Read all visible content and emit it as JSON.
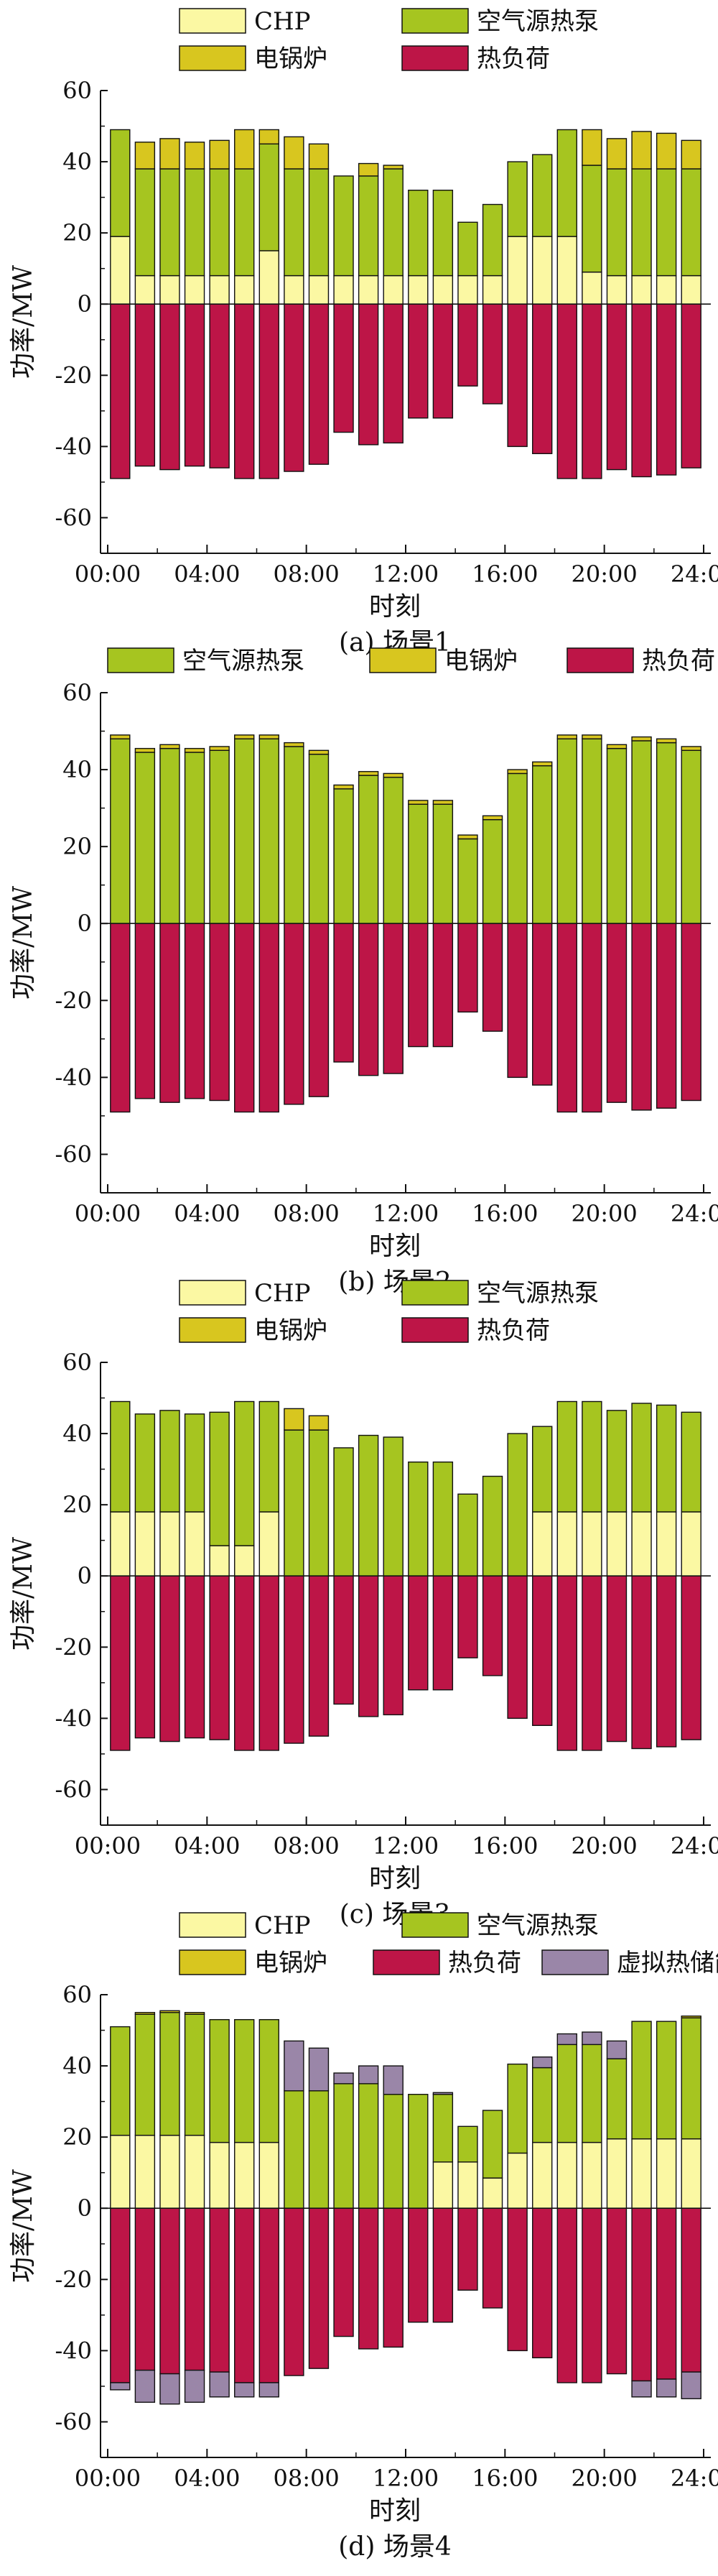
{
  "legend_labels": {
    "chp": "CHP",
    "heatpump": "空气源热泵",
    "boiler": "电锅炉",
    "load": "热负荷",
    "storage": "虚拟热储能"
  },
  "colors": {
    "chp": "#fbf8a3",
    "heatpump": "#a6c520",
    "boiler": "#d8c61f",
    "load": "#bd1547",
    "storage": "#9a86a8",
    "axis": "#111111"
  },
  "chart_data": [
    {
      "type": "bar",
      "stacked": true,
      "caption": "(a) 场景1",
      "xlabel": "时刻",
      "ylabel": "功率/MW",
      "ylim": [
        -70,
        60
      ],
      "yticks": [
        -60,
        -40,
        -20,
        0,
        20,
        40,
        60
      ],
      "xticks": [
        "00:00",
        "04:00",
        "08:00",
        "12:00",
        "16:00",
        "20:00",
        "24:00"
      ],
      "x": [
        1,
        2,
        3,
        4,
        5,
        6,
        7,
        8,
        9,
        10,
        11,
        12,
        13,
        14,
        15,
        16,
        17,
        18,
        19,
        20,
        21,
        22,
        23,
        24
      ],
      "legend_rows": [
        [
          "chp",
          "heatpump"
        ],
        [
          "boiler",
          "load"
        ]
      ],
      "series": [
        {
          "key": "chp",
          "name": "CHP",
          "values": [
            19,
            8,
            8,
            8,
            8,
            8,
            15,
            8,
            8,
            8,
            8,
            8,
            8,
            8,
            8,
            8,
            19,
            19,
            19,
            9,
            8,
            8,
            8,
            8
          ]
        },
        {
          "key": "heatpump",
          "name": "空气源热泵",
          "values": [
            30,
            30,
            30,
            30,
            30,
            30,
            30,
            30,
            30,
            28,
            28,
            30,
            24,
            24,
            15,
            20,
            21,
            23,
            30,
            30,
            30,
            30,
            30,
            30
          ]
        },
        {
          "key": "boiler",
          "name": "电锅炉",
          "values": [
            0,
            7.5,
            8.5,
            7.5,
            8,
            11,
            4,
            9,
            7,
            0,
            3.5,
            1,
            0,
            0,
            0,
            0,
            0,
            0,
            0,
            10,
            8.5,
            10.5,
            10,
            8
          ]
        },
        {
          "key": "load",
          "name": "热负荷",
          "values": [
            -49,
            -45.5,
            -46.5,
            -45.5,
            -46,
            -49,
            -49,
            -47,
            -45,
            -36,
            -39.5,
            -39,
            -32,
            -32,
            -23,
            -28,
            -40,
            -42,
            -49,
            -49,
            -46.5,
            -48.5,
            -48,
            -46
          ]
        }
      ]
    },
    {
      "type": "bar",
      "stacked": true,
      "caption": "(b) 场景2",
      "xlabel": "时刻",
      "ylabel": "功率/MW",
      "ylim": [
        -70,
        60
      ],
      "yticks": [
        -60,
        -40,
        -20,
        0,
        20,
        40,
        60
      ],
      "xticks": [
        "00:00",
        "04:00",
        "08:00",
        "12:00",
        "16:00",
        "20:00",
        "24:00"
      ],
      "x": [
        1,
        2,
        3,
        4,
        5,
        6,
        7,
        8,
        9,
        10,
        11,
        12,
        13,
        14,
        15,
        16,
        17,
        18,
        19,
        20,
        21,
        22,
        23,
        24
      ],
      "legend_rows": [
        [
          "heatpump",
          "boiler",
          "load"
        ]
      ],
      "series": [
        {
          "key": "heatpump",
          "name": "空气源热泵",
          "values": [
            48,
            44.5,
            45.5,
            44.5,
            45,
            48,
            48,
            46,
            44,
            35,
            38.5,
            38,
            31,
            31,
            22,
            27,
            39,
            41,
            48,
            48,
            45.5,
            47.5,
            47,
            45
          ]
        },
        {
          "key": "boiler",
          "name": "电锅炉",
          "values": [
            1,
            1,
            1,
            1,
            1,
            1,
            1,
            1,
            1,
            1,
            1,
            1,
            1,
            1,
            1,
            1,
            1,
            1,
            1,
            1,
            1,
            1,
            1,
            1
          ]
        },
        {
          "key": "load",
          "name": "热负荷",
          "values": [
            -49,
            -45.5,
            -46.5,
            -45.5,
            -46,
            -49,
            -49,
            -47,
            -45,
            -36,
            -39.5,
            -39,
            -32,
            -32,
            -23,
            -28,
            -40,
            -42,
            -49,
            -49,
            -46.5,
            -48.5,
            -48,
            -46
          ]
        }
      ]
    },
    {
      "type": "bar",
      "stacked": true,
      "caption": "(c) 场景3",
      "xlabel": "时刻",
      "ylabel": "功率/MW",
      "ylim": [
        -70,
        60
      ],
      "yticks": [
        -60,
        -40,
        -20,
        0,
        20,
        40,
        60
      ],
      "xticks": [
        "00:00",
        "04:00",
        "08:00",
        "12:00",
        "16:00",
        "20:00",
        "24:00"
      ],
      "x": [
        1,
        2,
        3,
        4,
        5,
        6,
        7,
        8,
        9,
        10,
        11,
        12,
        13,
        14,
        15,
        16,
        17,
        18,
        19,
        20,
        21,
        22,
        23,
        24
      ],
      "legend_rows": [
        [
          "chp",
          "heatpump"
        ],
        [
          "boiler",
          "load"
        ]
      ],
      "series": [
        {
          "key": "chp",
          "name": "CHP",
          "values": [
            18,
            18,
            18,
            18,
            8.5,
            8.5,
            18,
            0,
            0,
            0,
            0,
            0,
            0,
            0,
            0,
            0,
            0,
            18,
            18,
            18,
            18,
            18,
            18,
            18
          ]
        },
        {
          "key": "heatpump",
          "name": "空气源热泵",
          "values": [
            31,
            27.5,
            28.5,
            27.5,
            37.5,
            40.5,
            31,
            41,
            41,
            36,
            39.5,
            39,
            32,
            32,
            23,
            28,
            40,
            24,
            31,
            31,
            28.5,
            30.5,
            30,
            28
          ]
        },
        {
          "key": "boiler",
          "name": "电锅炉",
          "values": [
            0,
            0,
            0,
            0,
            0,
            0,
            0,
            6,
            4,
            0,
            0,
            0,
            0,
            0,
            0,
            0,
            0,
            0,
            0,
            0,
            0,
            0,
            0,
            0
          ]
        },
        {
          "key": "load",
          "name": "热负荷",
          "values": [
            -49,
            -45.5,
            -46.5,
            -45.5,
            -46,
            -49,
            -49,
            -47,
            -45,
            -36,
            -39.5,
            -39,
            -32,
            -32,
            -23,
            -28,
            -40,
            -42,
            -49,
            -49,
            -46.5,
            -48.5,
            -48,
            -46
          ]
        }
      ]
    },
    {
      "type": "bar",
      "stacked": true,
      "caption": "(d) 场景4",
      "xlabel": "时刻",
      "ylabel": "功率/MW",
      "ylim": [
        -70,
        60
      ],
      "yticks": [
        -60,
        -40,
        -20,
        0,
        20,
        40,
        60
      ],
      "xticks": [
        "00:00",
        "04:00",
        "08:00",
        "12:00",
        "16:00",
        "20:00",
        "24:00"
      ],
      "x": [
        1,
        2,
        3,
        4,
        5,
        6,
        7,
        8,
        9,
        10,
        11,
        12,
        13,
        14,
        15,
        16,
        17,
        18,
        19,
        20,
        21,
        22,
        23,
        24
      ],
      "legend_rows": [
        [
          "chp",
          "heatpump"
        ],
        [
          "boiler",
          "load",
          "storage"
        ]
      ],
      "series": [
        {
          "key": "chp",
          "name": "CHP",
          "values": [
            20.5,
            20.5,
            20.5,
            20.5,
            18.5,
            18.5,
            18.5,
            0,
            0,
            0,
            0,
            0,
            0,
            13,
            13,
            8.5,
            15.5,
            18.5,
            18.5,
            18.5,
            19.5,
            19.5,
            19.5,
            19.5
          ]
        },
        {
          "key": "heatpump",
          "name": "空气源热泵",
          "values": [
            30.5,
            34,
            34.5,
            34,
            34.5,
            34.5,
            34.5,
            33,
            33,
            35,
            35,
            32,
            32,
            19,
            10,
            19,
            25,
            21,
            27.5,
            27.5,
            22.5,
            33,
            33,
            34
          ]
        },
        {
          "key": "boiler",
          "name": "电锅炉",
          "values": [
            0,
            0.5,
            0.5,
            0.5,
            0,
            0,
            0,
            0,
            0,
            0,
            0,
            0,
            0,
            0,
            0,
            0,
            0,
            0,
            0,
            0,
            0,
            0,
            0,
            0.5
          ]
        },
        {
          "key": "storage",
          "name": "虚拟热储能",
          "values": [
            0,
            0,
            0,
            0,
            0,
            0,
            0,
            14,
            12,
            3,
            5,
            8,
            0,
            0.5,
            0,
            0,
            0,
            3,
            3,
            3.5,
            5,
            0,
            0,
            0
          ]
        },
        {
          "key": "load",
          "name": "热负荷",
          "values": [
            -49,
            -45.5,
            -46.5,
            -45.5,
            -46,
            -49,
            -49,
            -47,
            -45,
            -36,
            -39.5,
            -39,
            -32,
            -32,
            -23,
            -28,
            -40,
            -42,
            -49,
            -49,
            -46.5,
            -48.5,
            -48,
            -46
          ]
        },
        {
          "key": "storage_neg",
          "name": "虚拟热储能",
          "values": [
            -2,
            -9,
            -8.5,
            -9,
            -7,
            -4,
            -4,
            0,
            0,
            0,
            0,
            0,
            0,
            0,
            0,
            0,
            0,
            0,
            0,
            0,
            0,
            -4.5,
            -5,
            -7.5
          ]
        }
      ]
    }
  ]
}
